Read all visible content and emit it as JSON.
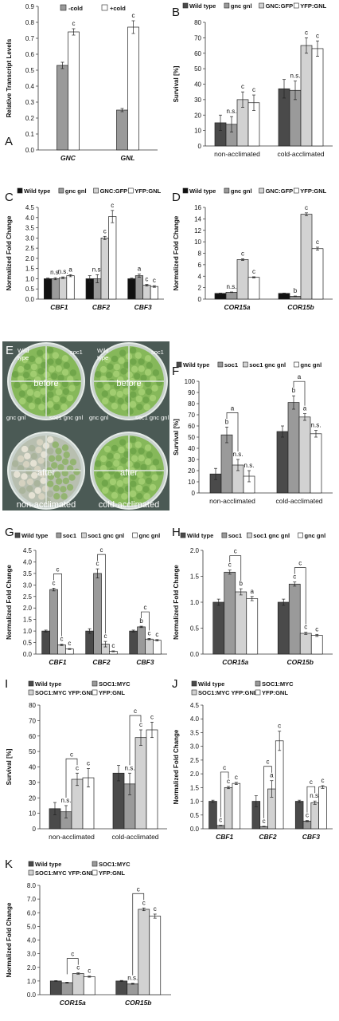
{
  "colors": {
    "black": "#111111",
    "dark": "#4a4a4a",
    "mid": "#9a9a9a",
    "light": "#d2d2d2",
    "white": "#ffffff",
    "photo_bg": "#4b5a55",
    "plant": "#86b85a"
  },
  "chart_data": [
    {
      "panel": "A",
      "type": "bar",
      "ylabel": "Relative Transcript Levels",
      "ylim": [
        0,
        0.9
      ],
      "yticks": [
        0,
        0.1,
        0.2,
        0.3,
        0.4,
        0.5,
        0.6,
        0.7,
        0.8,
        0.9
      ],
      "tick_decimals": 1,
      "categories": [
        "GNC",
        "GNL"
      ],
      "cat_italic": true,
      "legend": [
        "-cold",
        "+cold"
      ],
      "series": [
        {
          "name": "-cold",
          "color": "mid",
          "values": [
            0.53,
            0.25
          ],
          "err": [
            0.02,
            0.01
          ],
          "sig": [
            "",
            ""
          ]
        },
        {
          "name": "+cold",
          "color": "white",
          "values": [
            0.74,
            0.77
          ],
          "err": [
            0.02,
            0.04
          ],
          "sig": [
            "c",
            "c"
          ]
        }
      ]
    },
    {
      "panel": "B",
      "type": "bar",
      "ylabel": "Survival [%]",
      "ylim": [
        0,
        80
      ],
      "yticks": [
        0,
        10,
        20,
        30,
        40,
        50,
        60,
        70,
        80
      ],
      "tick_decimals": 0,
      "categories": [
        "non-acclimated",
        "cold-acclimated"
      ],
      "cat_italic": false,
      "legend": [
        "Wild type",
        "gnc gnl",
        "GNC:GFP",
        "YFP:GNL"
      ],
      "series": [
        {
          "name": "Wild type",
          "color": "dark",
          "values": [
            15,
            37
          ],
          "err": [
            5,
            6
          ],
          "sig": [
            "",
            ""
          ]
        },
        {
          "name": "gnc gnl",
          "color": "mid",
          "values": [
            14,
            36
          ],
          "err": [
            5,
            6
          ],
          "sig": [
            "n.s.",
            "n.s."
          ]
        },
        {
          "name": "GNC:GFP",
          "color": "light",
          "values": [
            30,
            65
          ],
          "err": [
            5,
            5
          ],
          "sig": [
            "c",
            "c"
          ]
        },
        {
          "name": "YFP:GNL",
          "color": "white",
          "values": [
            28,
            63
          ],
          "err": [
            5,
            5
          ],
          "sig": [
            "c",
            "c"
          ]
        }
      ]
    },
    {
      "panel": "C",
      "type": "bar",
      "ylabel": "Normalized Fold Change",
      "ylim": [
        0,
        4.5
      ],
      "yticks": [
        0,
        0.5,
        1.0,
        1.5,
        2.0,
        2.5,
        3.0,
        3.5,
        4.0,
        4.5
      ],
      "tick_decimals": 1,
      "categories": [
        "CBF1",
        "CBF2",
        "CBF3"
      ],
      "cat_italic": true,
      "legend": [
        "Wild type",
        "gnc gnl",
        "GNC:GFP",
        "YFP:GNL"
      ],
      "series": [
        {
          "name": "Wild type",
          "color": "black",
          "values": [
            1.0,
            1.0,
            1.0
          ],
          "err": [
            0.03,
            0.15,
            0.03
          ],
          "sig": [
            "",
            "",
            ""
          ]
        },
        {
          "name": "gnc gnl",
          "color": "mid",
          "values": [
            1.0,
            1.0,
            1.15
          ],
          "err": [
            0.05,
            0.2,
            0.08
          ],
          "sig": [
            "n.s.",
            "n.s.",
            "a"
          ]
        },
        {
          "name": "GNC:GFP",
          "color": "light",
          "values": [
            1.05,
            3.0,
            0.68
          ],
          "err": [
            0.04,
            0.08,
            0.04
          ],
          "sig": [
            "n.s.",
            "c",
            "c"
          ]
        },
        {
          "name": "YFP:GNL",
          "color": "white",
          "values": [
            1.15,
            4.05,
            0.62
          ],
          "err": [
            0.05,
            0.3,
            0.04
          ],
          "sig": [
            "a",
            "c",
            "c"
          ]
        }
      ]
    },
    {
      "panel": "D",
      "type": "bar",
      "ylabel": "Normalized Fold Change",
      "ylim": [
        0,
        16
      ],
      "yticks": [
        0,
        2,
        4,
        6,
        8,
        10,
        12,
        14,
        16
      ],
      "tick_decimals": 0,
      "categories": [
        "COR15a",
        "COR15b"
      ],
      "cat_italic": true,
      "legend": [
        "Wild type",
        "gnc gnl",
        "GNC:GFP",
        "YFP:GNL"
      ],
      "series": [
        {
          "name": "Wild type",
          "color": "black",
          "values": [
            1.0,
            1.0
          ],
          "err": [
            0.05,
            0.05
          ],
          "sig": [
            "",
            ""
          ]
        },
        {
          "name": "gnc gnl",
          "color": "mid",
          "values": [
            1.2,
            0.5
          ],
          "err": [
            0.05,
            0.05
          ],
          "sig": [
            "n.s.",
            "b"
          ]
        },
        {
          "name": "GNC:GFP",
          "color": "light",
          "values": [
            6.9,
            14.8
          ],
          "err": [
            0.15,
            0.25
          ],
          "sig": [
            "c",
            "c"
          ]
        },
        {
          "name": "YFP:GNL",
          "color": "white",
          "values": [
            3.8,
            8.8
          ],
          "err": [
            0.1,
            0.25
          ],
          "sig": [
            "c",
            "c"
          ]
        }
      ]
    },
    {
      "panel": "F",
      "type": "bar",
      "ylabel": "Survival [%]",
      "ylim": [
        0,
        100
      ],
      "yticks": [
        0,
        10,
        20,
        30,
        40,
        50,
        60,
        70,
        80,
        90,
        100
      ],
      "tick_decimals": 0,
      "categories": [
        "non-acclimated",
        "cold-acclimated"
      ],
      "cat_italic": false,
      "legend": [
        "Wild type",
        "soc1",
        "soc1 gnc gnl",
        "gnc gnl"
      ],
      "series": [
        {
          "name": "Wild type",
          "color": "dark",
          "values": [
            17,
            55
          ],
          "err": [
            5,
            5
          ],
          "sig": [
            "",
            ""
          ]
        },
        {
          "name": "soc1",
          "color": "mid",
          "values": [
            52,
            81
          ],
          "err": [
            7,
            6
          ],
          "sig": [
            "b",
            "b"
          ]
        },
        {
          "name": "soc1 gnc gnl",
          "color": "light",
          "values": [
            25,
            68
          ],
          "err": [
            5,
            3
          ],
          "sig": [
            "n.s.",
            "a"
          ]
        },
        {
          "name": "gnc gnl",
          "color": "white",
          "values": [
            15,
            53
          ],
          "err": [
            5,
            3
          ],
          "sig": [
            "n.s.",
            "n.s."
          ]
        }
      ],
      "brackets": [
        {
          "cat": 0,
          "s1": 1,
          "s2": 2,
          "label": "a"
        },
        {
          "cat": 1,
          "s1": 1,
          "s2": 2,
          "label": "a"
        }
      ]
    },
    {
      "panel": "G",
      "type": "bar",
      "ylabel": "Normalized Fold Change",
      "ylim": [
        0,
        4.5
      ],
      "yticks": [
        0,
        0.5,
        1.0,
        1.5,
        2.0,
        2.5,
        3.0,
        3.5,
        4.0,
        4.5
      ],
      "tick_decimals": 1,
      "categories": [
        "CBF1",
        "CBF2",
        "CBF3"
      ],
      "cat_italic": true,
      "legend": [
        "Wild type",
        "soc1",
        "soc1 gnc gnl",
        "gnc gnl"
      ],
      "series": [
        {
          "name": "Wild type",
          "color": "dark",
          "values": [
            1.0,
            1.0,
            1.0
          ],
          "err": [
            0.04,
            0.1,
            0.04
          ],
          "sig": [
            "",
            "",
            ""
          ]
        },
        {
          "name": "soc1",
          "color": "mid",
          "values": [
            2.8,
            3.5,
            1.18
          ],
          "err": [
            0.06,
            0.2,
            0.03
          ],
          "sig": [
            "c",
            "c",
            "b"
          ]
        },
        {
          "name": "soc1 gnc gnl",
          "color": "light",
          "values": [
            0.4,
            0.43,
            0.65
          ],
          "err": [
            0.03,
            0.12,
            0.03
          ],
          "sig": [
            "c",
            "c",
            "c"
          ]
        },
        {
          "name": "gnc gnl",
          "color": "white",
          "values": [
            0.22,
            0.12,
            0.6
          ],
          "err": [
            0.02,
            0.02,
            0.03
          ],
          "sig": [
            "c",
            "c",
            "c"
          ]
        }
      ],
      "brackets": [
        {
          "cat": 0,
          "s1": 1,
          "s2": 2,
          "label": "c"
        },
        {
          "cat": 1,
          "s1": 1,
          "s2": 2,
          "label": "c"
        },
        {
          "cat": 2,
          "s1": 1,
          "s2": 2,
          "label": "c"
        }
      ]
    },
    {
      "panel": "H",
      "type": "bar",
      "ylabel": "Normalized Fold Change",
      "ylim": [
        0,
        2.0
      ],
      "yticks": [
        0,
        0.5,
        1.0,
        1.5,
        2.0
      ],
      "tick_decimals": 1,
      "categories": [
        "COR15a",
        "COR15b"
      ],
      "cat_italic": true,
      "legend": [
        "Wild type",
        "soc1",
        "soc1 gnc gnl",
        "gnc gnl"
      ],
      "series": [
        {
          "name": "Wild type",
          "color": "dark",
          "values": [
            1.0,
            1.0
          ],
          "err": [
            0.06,
            0.06
          ],
          "sig": [
            "",
            ""
          ]
        },
        {
          "name": "soc1",
          "color": "mid",
          "values": [
            1.58,
            1.35
          ],
          "err": [
            0.04,
            0.04
          ],
          "sig": [
            "c",
            "c"
          ]
        },
        {
          "name": "soc1 gnc gnl",
          "color": "light",
          "values": [
            1.2,
            0.4
          ],
          "err": [
            0.06,
            0.02
          ],
          "sig": [
            "b",
            "c"
          ]
        },
        {
          "name": "gnc gnl",
          "color": "white",
          "values": [
            1.07,
            0.36
          ],
          "err": [
            0.04,
            0.02
          ],
          "sig": [
            "a",
            "c"
          ]
        }
      ],
      "brackets": [
        {
          "cat": 0,
          "s1": 1,
          "s2": 2,
          "label": "c"
        },
        {
          "cat": 1,
          "s1": 1,
          "s2": 2,
          "label": "c"
        }
      ]
    },
    {
      "panel": "I",
      "type": "bar",
      "ylabel": "Survival [%]",
      "ylim": [
        0,
        80
      ],
      "yticks": [
        0,
        10,
        20,
        30,
        40,
        50,
        60,
        70,
        80
      ],
      "tick_decimals": 0,
      "categories": [
        "non-acclimated",
        "cold-acclimated"
      ],
      "cat_italic": false,
      "legend": [
        "Wild type",
        "SOC1:MYC",
        "SOC1:MYC YFP:GNL",
        "YFP:GNL"
      ],
      "series": [
        {
          "name": "Wild type",
          "color": "dark",
          "values": [
            13,
            36
          ],
          "err": [
            4,
            5
          ],
          "sig": [
            "",
            ""
          ]
        },
        {
          "name": "SOC1:MYC",
          "color": "mid",
          "values": [
            11,
            29
          ],
          "err": [
            4,
            7
          ],
          "sig": [
            "n.s.",
            "n.s."
          ]
        },
        {
          "name": "SOC1:MYC YFP:GNL",
          "color": "light",
          "values": [
            32,
            59
          ],
          "err": [
            4,
            5
          ],
          "sig": [
            "c",
            "c"
          ]
        },
        {
          "name": "YFP:GNL",
          "color": "white",
          "values": [
            33,
            64
          ],
          "err": [
            6,
            5
          ],
          "sig": [
            "c",
            "c"
          ]
        }
      ],
      "brackets": [
        {
          "cat": 0,
          "s1": 1,
          "s2": 2,
          "label": "c"
        },
        {
          "cat": 1,
          "s1": 1,
          "s2": 2,
          "label": "c"
        }
      ]
    },
    {
      "panel": "J",
      "type": "bar",
      "ylabel": "Normalized Fold Change",
      "ylim": [
        0,
        4.5
      ],
      "yticks": [
        0,
        0.5,
        1.0,
        1.5,
        2.0,
        2.5,
        3.0,
        3.5,
        4.0,
        4.5
      ],
      "tick_decimals": 1,
      "categories": [
        "CBF1",
        "CBF2",
        "CBF3"
      ],
      "cat_italic": true,
      "legend": [
        "Wild type",
        "SOC1:MYC",
        "SOC1:MYC YFP:GNL",
        "YFP:GNL"
      ],
      "series": [
        {
          "name": "Wild type",
          "color": "dark",
          "values": [
            1.0,
            1.0,
            1.0
          ],
          "err": [
            0.04,
            0.2,
            0.04
          ],
          "sig": [
            "",
            "",
            ""
          ]
        },
        {
          "name": "SOC1:MYC",
          "color": "mid",
          "values": [
            0.12,
            0.08,
            0.28
          ],
          "err": [
            0.01,
            0.01,
            0.02
          ],
          "sig": [
            "c",
            "c",
            "c"
          ]
        },
        {
          "name": "SOC1:MYC YFP:GNL",
          "color": "light",
          "values": [
            1.5,
            1.45,
            0.95
          ],
          "err": [
            0.04,
            0.3,
            0.06
          ],
          "sig": [
            "c",
            "a",
            "n.s."
          ]
        },
        {
          "name": "YFP:GNL",
          "color": "white",
          "values": [
            1.65,
            3.2,
            1.52
          ],
          "err": [
            0.04,
            0.35,
            0.05
          ],
          "sig": [
            "c",
            "c",
            "c"
          ]
        }
      ],
      "brackets": [
        {
          "cat": 0,
          "s1": 1,
          "s2": 2,
          "label": "c"
        },
        {
          "cat": 1,
          "s1": 1,
          "s2": 2,
          "label": "c"
        },
        {
          "cat": 2,
          "s1": 1,
          "s2": 2,
          "label": "c"
        }
      ]
    },
    {
      "panel": "K",
      "type": "bar",
      "ylabel": "Normalized Fold Change",
      "ylim": [
        0,
        8.0
      ],
      "yticks": [
        0,
        1.0,
        2.0,
        3.0,
        4.0,
        5.0,
        6.0,
        7.0,
        8.0
      ],
      "tick_decimals": 1,
      "categories": [
        "COR15a",
        "COR15b"
      ],
      "cat_italic": true,
      "legend": [
        "Wild type",
        "SOC1:MYC",
        "SOC1:MYC YFP:GNL",
        "YFP:GNL"
      ],
      "series": [
        {
          "name": "Wild type",
          "color": "dark",
          "values": [
            1.0,
            1.0
          ],
          "err": [
            0.03,
            0.04
          ],
          "sig": [
            "",
            ""
          ]
        },
        {
          "name": "SOC1:MYC",
          "color": "mid",
          "values": [
            0.88,
            0.8
          ],
          "err": [
            0.03,
            0.04
          ],
          "sig": [
            "",
            "n.s."
          ]
        },
        {
          "name": "SOC1:MYC YFP:GNL",
          "color": "light",
          "values": [
            1.55,
            6.25
          ],
          "err": [
            0.05,
            0.1
          ],
          "sig": [
            "c",
            "c"
          ]
        },
        {
          "name": "YFP:GNL",
          "color": "white",
          "values": [
            1.32,
            5.75
          ],
          "err": [
            0.04,
            0.15
          ],
          "sig": [
            "c",
            "c"
          ]
        }
      ],
      "brackets": [
        {
          "cat": 0,
          "s1": 1,
          "s2": 2,
          "label": "c"
        },
        {
          "cat": 1,
          "s1": 1,
          "s2": 2,
          "label": "c"
        }
      ]
    }
  ],
  "photo": {
    "panel": "E",
    "labels": {
      "wild_type": "Wild\ntype",
      "soc1": "soc1",
      "gnc_gnl": "gnc gnl",
      "soc1_gnc_gnl": "soc1 gnc gnl",
      "before": "before",
      "after": "after",
      "non_acclimated": "non-acclimated",
      "cold_acclimated": "cold-acclimated"
    }
  }
}
